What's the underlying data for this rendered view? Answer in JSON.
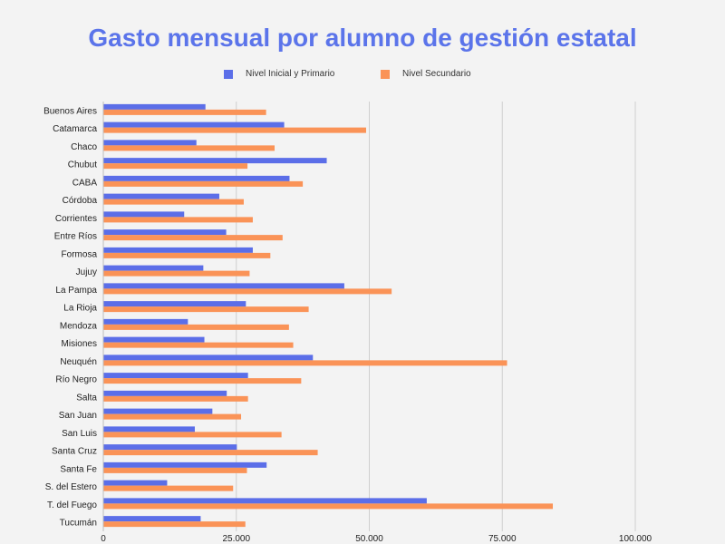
{
  "chart_data": {
    "type": "bar",
    "orientation": "horizontal",
    "title": "Gasto mensual por alumno de gestión estatal",
    "xlabel": "",
    "ylabel": "",
    "xlim": [
      0,
      100000
    ],
    "xticks": [
      0,
      25000,
      50000,
      75000,
      100000
    ],
    "xtick_labels": [
      "0",
      "25.000",
      "50.000",
      "75.000",
      "100.000"
    ],
    "grid": true,
    "legend_position": "top",
    "categories": [
      "Buenos Aires",
      "Catamarca",
      "Chaco",
      "Chubut",
      "CABA",
      "Córdoba",
      "Corrientes",
      "Entre Ríos",
      "Formosa",
      "Jujuy",
      "La Pampa",
      "La Rioja",
      "Mendoza",
      "Misiones",
      "Neuquén",
      "Río Negro",
      "Salta",
      "San Juan",
      "San Luis",
      "Santa Cruz",
      "Santa Fe",
      "S. del Estero",
      "T. del Fuego",
      "Tucumán"
    ],
    "series": [
      {
        "name": "Nivel Inicial y Primario",
        "color": "#5b6ee8",
        "values": [
          19200,
          34000,
          17500,
          42000,
          35000,
          21800,
          15200,
          23100,
          28100,
          18800,
          45300,
          26800,
          15900,
          19000,
          39400,
          27200,
          23200,
          20500,
          17200,
          25100,
          30700,
          12000,
          60800,
          18300
        ]
      },
      {
        "name": "Nivel Secundario",
        "color": "#fa9357",
        "values": [
          30600,
          49400,
          32200,
          27100,
          37500,
          26400,
          28100,
          33700,
          31400,
          27500,
          54200,
          38600,
          34900,
          35700,
          75900,
          37200,
          27200,
          25900,
          33500,
          40300,
          27000,
          24400,
          84500,
          26700
        ]
      }
    ]
  }
}
